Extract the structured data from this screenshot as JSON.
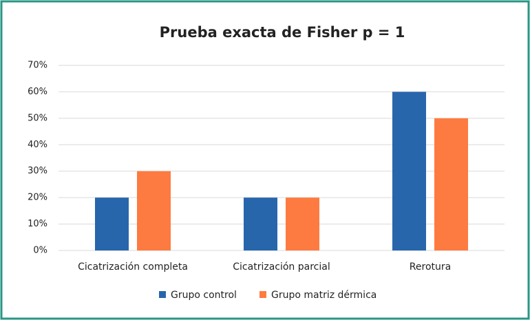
{
  "chart_data": {
    "type": "bar",
    "title": "Prueba exacta de Fisher p = 1",
    "categories": [
      "Cicatrización completa",
      "Cicatrización parcial",
      "Rerotura"
    ],
    "series": [
      {
        "name": "Grupo control",
        "color": "#2866ac",
        "values": [
          20,
          20,
          60
        ]
      },
      {
        "name": "Grupo matriz dérmica",
        "color": "#fd7b40",
        "values": [
          30,
          20,
          50
        ]
      }
    ],
    "ylim": [
      0,
      70
    ],
    "yticks": [
      {
        "value": 0,
        "label": "0%"
      },
      {
        "value": 10,
        "label": "10%"
      },
      {
        "value": 20,
        "label": "20%"
      },
      {
        "value": 30,
        "label": "30%"
      },
      {
        "value": 40,
        "label": "40%"
      },
      {
        "value": 50,
        "label": "50%"
      },
      {
        "value": 60,
        "label": "60%"
      },
      {
        "value": 70,
        "label": "70%"
      }
    ],
    "grid": true,
    "legend": "bottom"
  }
}
